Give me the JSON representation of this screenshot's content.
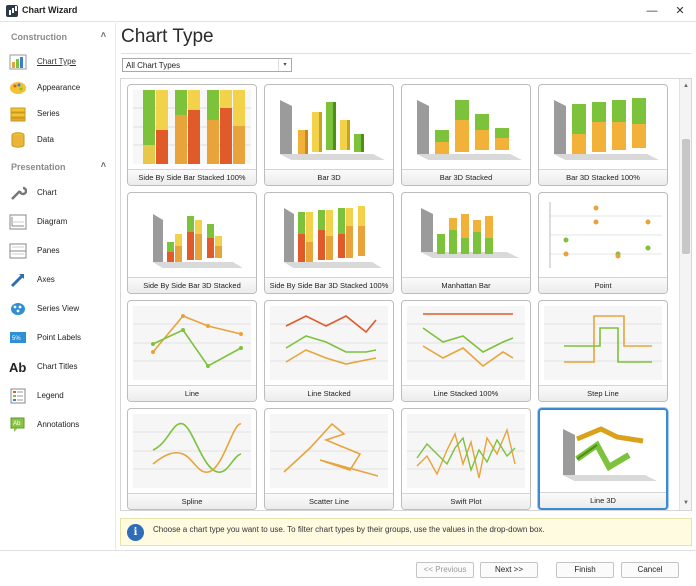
{
  "window": {
    "title": "Chart Wizard",
    "minimize": "—",
    "maximize": "☐",
    "close": "✕"
  },
  "sidebar": {
    "groups": [
      {
        "label": "Construction",
        "chevron": "˄"
      },
      {
        "label": "Presentation",
        "chevron": "˄"
      }
    ],
    "construction_items": [
      {
        "label": "Chart Type",
        "icon": "chart-type-icon"
      },
      {
        "label": "Appearance",
        "icon": "appearance-icon"
      },
      {
        "label": "Series",
        "icon": "series-icon"
      },
      {
        "label": "Data",
        "icon": "data-icon"
      }
    ],
    "presentation_items": [
      {
        "label": "Chart",
        "icon": "wrench-icon"
      },
      {
        "label": "Diagram",
        "icon": "diagram-icon"
      },
      {
        "label": "Panes",
        "icon": "panes-icon"
      },
      {
        "label": "Axes",
        "icon": "axes-icon"
      },
      {
        "label": "Series View",
        "icon": "series-view-icon"
      },
      {
        "label": "Point Labels",
        "icon": "point-labels-icon"
      },
      {
        "label": "Chart Titles",
        "icon": "chart-titles-icon"
      },
      {
        "label": "Legend",
        "icon": "legend-icon"
      },
      {
        "label": "Annotations",
        "icon": "annotations-icon"
      }
    ]
  },
  "main": {
    "title": "Chart Type",
    "filter": {
      "value": "All Chart Types",
      "arrow": "▾"
    },
    "tiles": [
      "Side By Side Bar Stacked 100%",
      "Bar 3D",
      "Bar 3D Stacked",
      "Bar 3D Stacked 100%",
      "Side By Side Bar 3D Stacked",
      "Side By Side Bar 3D Stacked 100%",
      "Manhattan Bar",
      "Point",
      "Line",
      "Line Stacked",
      "Line Stacked 100%",
      "Step Line",
      "Spline",
      "Scatter Line",
      "Swift Plot",
      "Line 3D"
    ],
    "selected_tile": "Line 3D",
    "hint": {
      "icon": "i",
      "text": "Choose a chart type you want to use. To filter chart types by their groups, use the values in the drop-down box."
    }
  },
  "footer": {
    "previous": "<< Previous",
    "next": "Next >>",
    "finish": "Finish",
    "cancel": "Cancel"
  },
  "scrollbar": {
    "up": "▲",
    "down": "▼"
  },
  "colors": {
    "accent": "#3b8ad3",
    "green": "#7cc23a",
    "orange": "#e8a33a",
    "red": "#e05a2a",
    "yellow": "#f2d24a",
    "gray": "#9b9b9b"
  }
}
